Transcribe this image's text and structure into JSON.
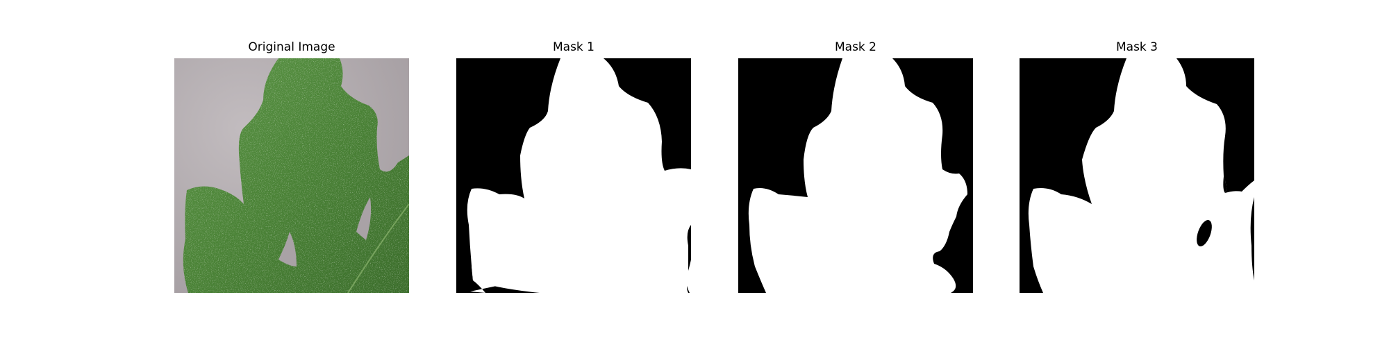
{
  "figure": {
    "panels": [
      {
        "title": "Original Image",
        "content": "leaf-photo"
      },
      {
        "title": "Mask 1",
        "content": "binary-mask"
      },
      {
        "title": "Mask 2",
        "content": "binary-mask"
      },
      {
        "title": "Mask 3",
        "content": "binary-mask"
      }
    ]
  },
  "colors": {
    "background": "#ffffff",
    "mask_background": "#000000",
    "mask_foreground": "#ffffff",
    "leaf_green": "#4f8a3a",
    "leaf_dark": "#3b6d2b",
    "backdrop_gray": "#b7b0b3"
  }
}
